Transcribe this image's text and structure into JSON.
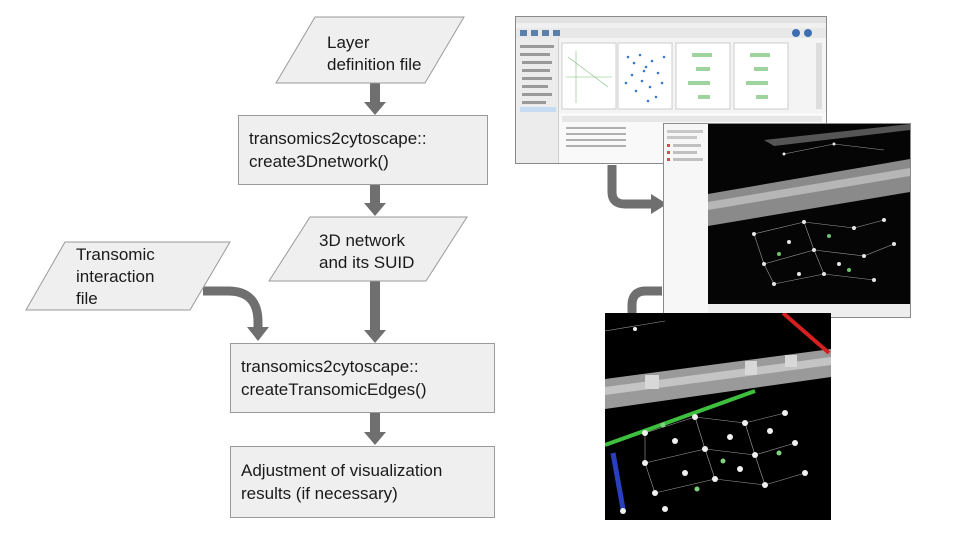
{
  "flowchart": {
    "layer_input": [
      "Layer",
      "definition file"
    ],
    "create3d": [
      "transomics2cytoscape::",
      "create3Dnetwork()"
    ],
    "network_output": [
      "3D network",
      "and its SUID"
    ],
    "interaction_input": [
      "Transomic",
      "interaction",
      "file"
    ],
    "create_edges": [
      "transomics2cytoscape::",
      "createTransomicEdges()"
    ],
    "adjustment": [
      "Adjustment of visualization",
      "results (if necessary)"
    ]
  },
  "colors": {
    "box_fill": "#efefef",
    "box_border": "#9a9a9a",
    "arrow": "#6f6f6f",
    "edge_green": "#3ec03e",
    "edge_red": "#d42020",
    "edge_blue": "#2a3fbf"
  }
}
